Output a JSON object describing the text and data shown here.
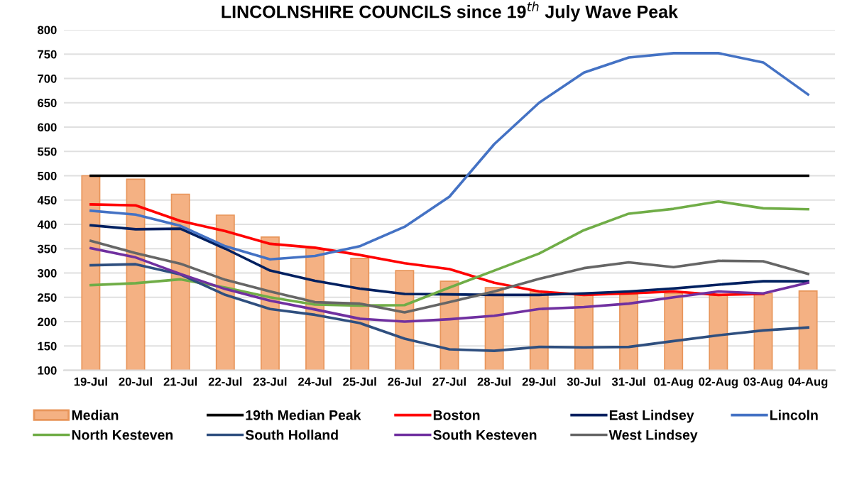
{
  "chart_data": {
    "type": "line",
    "title": "LINCOLNSHIRE COUNCILS since 19$^{th}$ July Wave Peak",
    "categories": [
      "19-Jul",
      "20-Jul",
      "21-Jul",
      "22-Jul",
      "23-Jul",
      "24-Jul",
      "25-Jul",
      "26-Jul",
      "27-Jul",
      "28-Jul",
      "29-Jul",
      "30-Jul",
      "31-Jul",
      "01-Aug",
      "02-Aug",
      "03-Aug",
      "04-Aug"
    ],
    "series": [
      {
        "name": "Median",
        "type": "bar",
        "color": "#f4b183",
        "values": [
          500,
          493,
          462,
          419,
          374,
          350,
          330,
          305,
          283,
          270,
          262,
          257,
          256,
          258,
          254,
          258,
          263
        ]
      },
      {
        "name": "19th Median Peak",
        "color": "#000000",
        "values": [
          500,
          500,
          500,
          500,
          500,
          500,
          500,
          500,
          500,
          500,
          500,
          500,
          500,
          500,
          500,
          500,
          500
        ]
      },
      {
        "name": "Boston",
        "color": "#ff0000",
        "values": [
          441,
          439,
          407,
          386,
          360,
          352,
          337,
          320,
          308,
          280,
          262,
          255,
          258,
          262,
          255,
          257,
          null
        ]
      },
      {
        "name": "East Lindsey",
        "color": "#002060",
        "values": [
          398,
          390,
          391,
          350,
          305,
          284,
          268,
          257,
          256,
          255,
          255,
          258,
          262,
          268,
          276,
          283,
          283
        ]
      },
      {
        "name": "Lincoln",
        "color": "#4472c4",
        "values": [
          428,
          420,
          397,
          355,
          328,
          335,
          355,
          395,
          457,
          565,
          650,
          712,
          743,
          752,
          752,
          733,
          667
        ]
      },
      {
        "name": "North Kesteven",
        "color": "#70ad47",
        "values": [
          275,
          279,
          287,
          270,
          250,
          235,
          233,
          234,
          270,
          305,
          340,
          388,
          422,
          432,
          447,
          433,
          431
        ]
      },
      {
        "name": "South Holland",
        "color": "#2f4f7f",
        "values": [
          316,
          318,
          297,
          255,
          226,
          214,
          197,
          165,
          143,
          140,
          148,
          147,
          148,
          160,
          172,
          182,
          188
        ]
      },
      {
        "name": "South Kesteven",
        "color": "#7030a0",
        "values": [
          351,
          332,
          298,
          267,
          243,
          225,
          206,
          200,
          205,
          212,
          226,
          230,
          237,
          250,
          262,
          258,
          280
        ]
      },
      {
        "name": "West Lindsey",
        "color": "#666666",
        "values": [
          366,
          341,
          319,
          286,
          262,
          240,
          237,
          219,
          240,
          262,
          288,
          310,
          322,
          312,
          325,
          324,
          298
        ]
      }
    ],
    "ylim": [
      100,
      800
    ],
    "yticks": [
      100,
      150,
      200,
      250,
      300,
      350,
      400,
      450,
      500,
      550,
      600,
      650,
      700,
      750,
      800
    ],
    "grid": "y",
    "legend": "bottom",
    "marker": "none",
    "line_style": "solid"
  }
}
